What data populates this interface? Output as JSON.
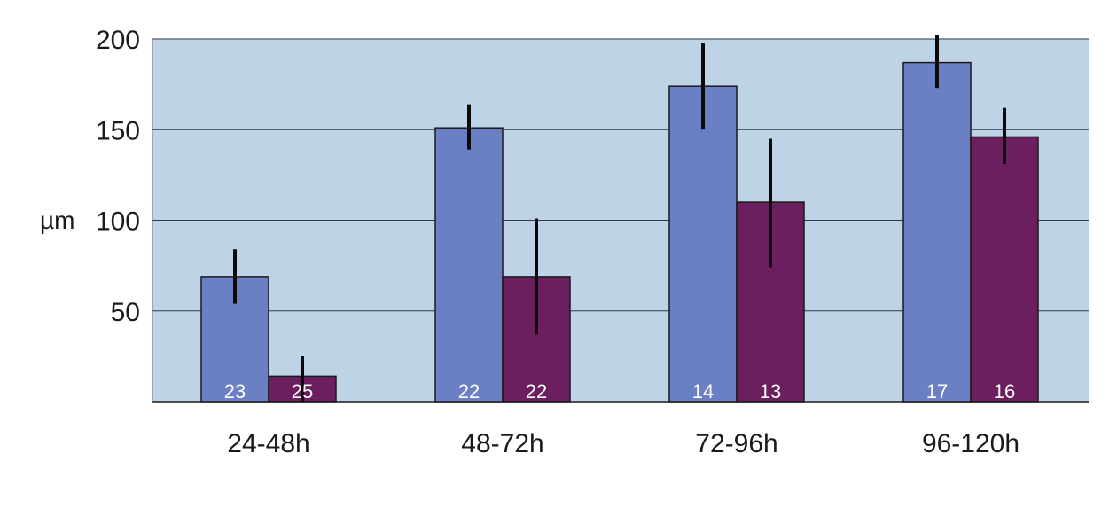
{
  "chart_data": {
    "type": "bar",
    "title": "",
    "xlabel": "",
    "ylabel": "µm",
    "categories": [
      "24-48h",
      "48-72h",
      "72-96h",
      "96-120h"
    ],
    "ylim": [
      0,
      200
    ],
    "yticks": [
      50,
      100,
      150,
      200
    ],
    "grid": true,
    "background_color": "#bfd3e6",
    "series": [
      {
        "color": "#6b7fc4",
        "values": [
          69,
          151,
          174,
          187
        ],
        "error": [
          [
            54,
            84
          ],
          [
            139,
            164
          ],
          [
            150,
            198
          ],
          [
            173,
            202
          ]
        ],
        "n_labels": [
          "23",
          "22",
          "14",
          "17"
        ]
      },
      {
        "color": "#6b1f5e",
        "values": [
          14,
          69,
          110,
          146
        ],
        "error": [
          [
            -5,
            25
          ],
          [
            37,
            101
          ],
          [
            74,
            145
          ],
          [
            131,
            162
          ]
        ],
        "n_labels": [
          "25",
          "22",
          "13",
          "16"
        ]
      }
    ]
  }
}
